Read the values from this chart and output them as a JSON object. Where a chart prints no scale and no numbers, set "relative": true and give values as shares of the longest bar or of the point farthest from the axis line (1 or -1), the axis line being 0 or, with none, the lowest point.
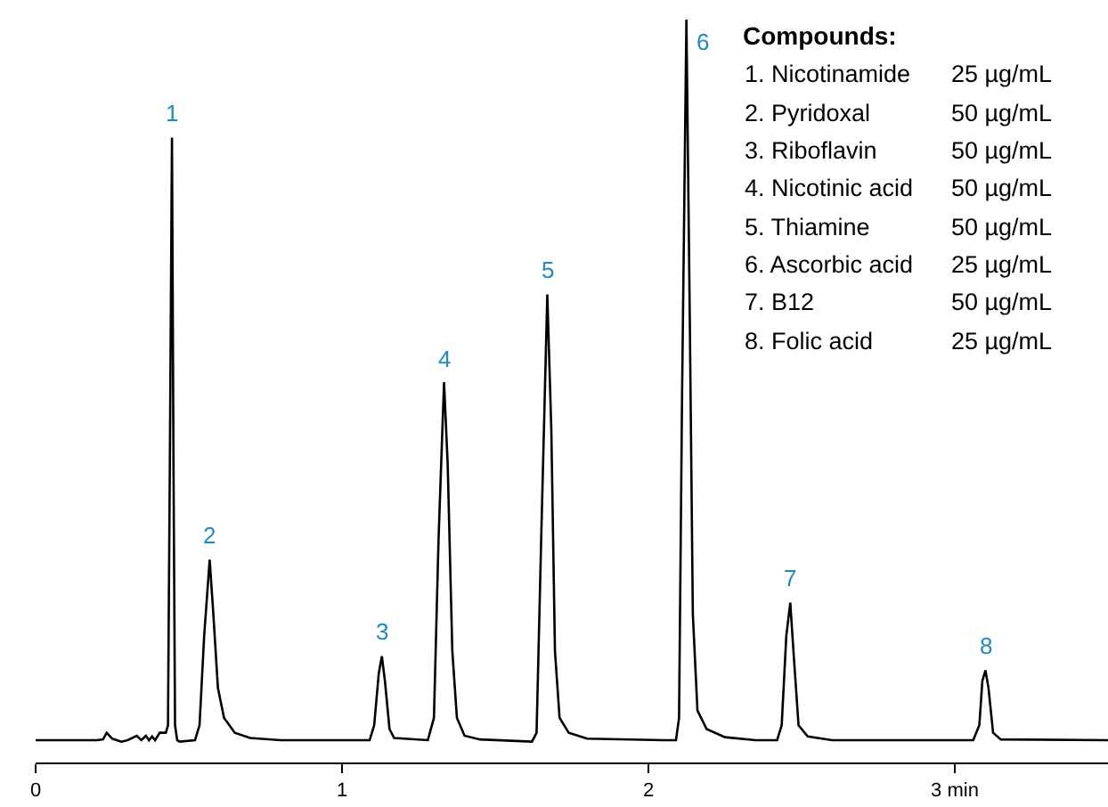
{
  "chart_data": {
    "type": "line",
    "relative": true,
    "tick_labels": "x",
    "grid": false,
    "marker": "none",
    "line_style": "solid",
    "xlim": [
      0,
      3.5
    ],
    "xticks": [
      0,
      1,
      2,
      {
        "value": 3,
        "label": "3 min"
      }
    ],
    "series": [
      {
        "color": "#000000",
        "x": [
          0,
          0.2,
          0.22,
          0.232,
          0.25,
          0.28,
          0.3,
          0.33,
          0.345,
          0.36,
          0.37,
          0.38,
          0.39,
          0.405,
          0.425,
          0.432,
          0.438,
          0.445,
          0.45,
          0.455,
          0.462,
          0.47,
          0.52,
          0.535,
          0.55,
          0.568,
          0.58,
          0.595,
          0.615,
          0.65,
          0.7,
          0.8,
          1.09,
          1.105,
          1.12,
          1.13,
          1.14,
          1.155,
          1.17,
          1.28,
          1.3,
          1.315,
          1.333,
          1.345,
          1.36,
          1.375,
          1.4,
          1.45,
          1.62,
          1.635,
          1.65,
          1.67,
          1.683,
          1.695,
          1.71,
          1.74,
          1.8,
          2.05,
          2.09,
          2.1,
          2.11,
          2.124,
          2.135,
          2.145,
          2.16,
          2.19,
          2.25,
          2.35,
          2.42,
          2.435,
          2.45,
          2.463,
          2.475,
          2.49,
          2.52,
          2.6,
          3.06,
          3.08,
          3.09,
          3.1,
          3.11,
          3.125,
          3.15,
          3.5
        ],
        "values": [
          0.03,
          0.03,
          0.031,
          0.04,
          0.032,
          0.028,
          0.03,
          0.036,
          0.03,
          0.036,
          0.03,
          0.035,
          0.03,
          0.04,
          0.04,
          0.05,
          0.4,
          0.841,
          0.4,
          0.05,
          0.03,
          0.028,
          0.03,
          0.05,
          0.17,
          0.273,
          0.2,
          0.1,
          0.06,
          0.04,
          0.033,
          0.03,
          0.03,
          0.05,
          0.12,
          0.143,
          0.11,
          0.045,
          0.033,
          0.03,
          0.06,
          0.3,
          0.512,
          0.4,
          0.15,
          0.06,
          0.036,
          0.031,
          0.028,
          0.04,
          0.3,
          0.63,
          0.45,
          0.15,
          0.06,
          0.04,
          0.032,
          0.03,
          0.03,
          0.06,
          0.5,
          1,
          0.6,
          0.2,
          0.07,
          0.045,
          0.034,
          0.03,
          0.03,
          0.05,
          0.17,
          0.215,
          0.14,
          0.05,
          0.035,
          0.03,
          0.03,
          0.05,
          0.11,
          0.124,
          0.1,
          0.04,
          0.031,
          0.03
        ]
      }
    ],
    "annotations": [
      {
        "text": "1",
        "x": 0.445,
        "y": 0.841
      },
      {
        "text": "2",
        "x": 0.568,
        "y": 0.273
      },
      {
        "text": "3",
        "x": 1.13,
        "y": 0.143
      },
      {
        "text": "4",
        "x": 1.333,
        "y": 0.512
      },
      {
        "text": "5",
        "x": 1.67,
        "y": 0.63
      },
      {
        "text": "6",
        "x": 2.124,
        "y": 1
      },
      {
        "text": "7",
        "x": 2.463,
        "y": 0.215
      },
      {
        "text": "8",
        "x": 3.1,
        "y": 0.124
      },
      "Compounds:",
      "1. Nicotinamide",
      "25 µg/mL",
      "2. Pyridoxal",
      "50 µg/mL",
      "3. Riboflavin",
      "50 µg/mL",
      "4. Nicotinic acid",
      "50 µg/mL",
      "5. Thiamine",
      "50 µg/mL",
      "6. Ascorbic acid",
      "25 µg/mL",
      "7. B12",
      "50 µg/mL",
      "8. Folic acid",
      "25 µg/mL"
    ]
  }
}
